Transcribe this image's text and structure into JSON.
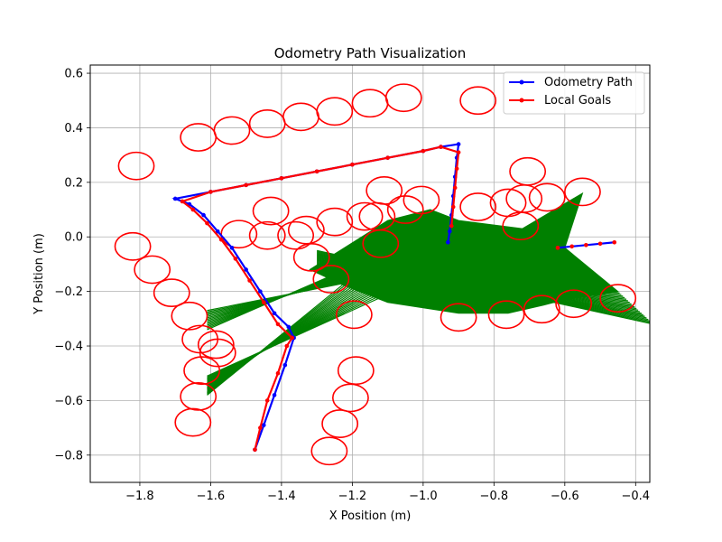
{
  "chart_data": {
    "type": "line",
    "title": "Odometry Path Visualization",
    "xlabel": "X Position (m)",
    "ylabel": "Y Position (m)",
    "xlim": [
      -1.94,
      -0.36
    ],
    "ylim": [
      -0.9,
      0.63
    ],
    "xticks": [
      -1.8,
      -1.6,
      -1.4,
      -1.2,
      -1.0,
      -0.8,
      -0.6,
      -0.4
    ],
    "yticks": [
      -0.8,
      -0.6,
      -0.4,
      -0.2,
      0.0,
      0.2,
      0.4,
      0.6
    ],
    "xtick_labels": [
      "−1.8",
      "−1.6",
      "−1.4",
      "−1.2",
      "−1.0",
      "−0.8",
      "−0.6",
      "−0.4"
    ],
    "ytick_labels": [
      "−0.8",
      "−0.6",
      "−0.4",
      "−0.2",
      "0.0",
      "0.2",
      "0.4",
      "0.6"
    ],
    "grid": true,
    "legend_position": "top-right",
    "colors": {
      "odometry": "#0000ff",
      "goals": "#ff0000",
      "connections": "#008000"
    },
    "series": [
      {
        "name": "Odometry Path",
        "x": [
          -1.475,
          -1.45,
          -1.42,
          -1.39,
          -1.365,
          -1.38,
          -1.42,
          -1.46,
          -1.5,
          -1.54,
          -1.58,
          -1.62,
          -1.66,
          -1.7,
          -1.6,
          -1.5,
          -1.4,
          -1.3,
          -1.2,
          -1.1,
          -1.0,
          -0.95,
          -0.9,
          -0.905,
          -0.91,
          -0.915,
          -0.92,
          -0.925,
          -0.93
        ],
        "y": [
          -0.78,
          -0.69,
          -0.58,
          -0.47,
          -0.37,
          -0.33,
          -0.28,
          -0.2,
          -0.12,
          -0.04,
          0.02,
          0.08,
          0.12,
          0.14,
          0.165,
          0.19,
          0.215,
          0.24,
          0.265,
          0.29,
          0.315,
          0.33,
          0.34,
          0.29,
          0.22,
          0.15,
          0.08,
          0.02,
          -0.02
        ]
      },
      {
        "name": "Local Goals",
        "x": [
          -1.475,
          -1.46,
          -1.44,
          -1.41,
          -1.385,
          -1.37,
          -1.41,
          -1.45,
          -1.49,
          -1.53,
          -1.57,
          -1.61,
          -1.65,
          -1.68,
          -1.6,
          -1.5,
          -1.4,
          -1.3,
          -1.2,
          -1.1,
          -1.0,
          -0.95,
          -0.9,
          -0.905,
          -0.91,
          -0.915,
          -0.92
        ],
        "y": [
          -0.78,
          -0.7,
          -0.6,
          -0.5,
          -0.4,
          -0.37,
          -0.32,
          -0.24,
          -0.16,
          -0.08,
          -0.01,
          0.05,
          0.1,
          0.13,
          0.165,
          0.19,
          0.215,
          0.24,
          0.265,
          0.29,
          0.315,
          0.33,
          0.31,
          0.25,
          0.18,
          0.11,
          0.04
        ]
      }
    ],
    "goal_path_tail": {
      "x": [
        -0.62,
        -0.58,
        -0.54,
        -0.5,
        -0.46
      ],
      "y": [
        -0.04,
        -0.035,
        -0.03,
        -0.025,
        -0.02
      ]
    },
    "obstacles": {
      "radius_x": 0.05,
      "radius_y": 0.05,
      "centers": [
        [
          -1.81,
          0.26
        ],
        [
          -1.82,
          -0.035
        ],
        [
          -1.765,
          -0.12
        ],
        [
          -1.71,
          -0.205
        ],
        [
          -1.66,
          -0.29
        ],
        [
          -1.63,
          -0.375
        ],
        [
          -1.585,
          -0.395
        ],
        [
          -1.58,
          -0.425
        ],
        [
          -1.625,
          -0.49
        ],
        [
          -1.635,
          -0.585
        ],
        [
          -1.65,
          -0.68
        ],
        [
          -1.635,
          0.365
        ],
        [
          -1.54,
          0.39
        ],
        [
          -1.44,
          0.415
        ],
        [
          -1.345,
          0.44
        ],
        [
          -1.25,
          0.46
        ],
        [
          -1.15,
          0.49
        ],
        [
          -1.055,
          0.51
        ],
        [
          -0.845,
          0.5
        ],
        [
          -1.52,
          0.01
        ],
        [
          -1.44,
          0.005
        ],
        [
          -1.43,
          0.095
        ],
        [
          -1.36,
          0.005
        ],
        [
          -1.33,
          0.025
        ],
        [
          -1.315,
          -0.075
        ],
        [
          -1.26,
          -0.155
        ],
        [
          -1.25,
          0.055
        ],
        [
          -1.165,
          0.075
        ],
        [
          -1.13,
          0.075
        ],
        [
          -1.12,
          -0.025
        ],
        [
          -1.11,
          0.17
        ],
        [
          -1.05,
          0.1
        ],
        [
          -1.005,
          0.135
        ],
        [
          -0.845,
          0.11
        ],
        [
          -0.76,
          0.125
        ],
        [
          -0.715,
          0.14
        ],
        [
          -0.705,
          0.24
        ],
        [
          -0.65,
          0.145
        ],
        [
          -0.55,
          0.165
        ],
        [
          -0.725,
          0.04
        ],
        [
          -1.195,
          -0.285
        ],
        [
          -0.9,
          -0.295
        ],
        [
          -0.765,
          -0.285
        ],
        [
          -0.665,
          -0.265
        ],
        [
          -0.575,
          -0.245
        ],
        [
          -0.45,
          -0.225
        ],
        [
          -1.19,
          -0.49
        ],
        [
          -1.205,
          -0.59
        ],
        [
          -1.235,
          -0.685
        ],
        [
          -1.265,
          -0.785
        ]
      ]
    },
    "connection_fans": [
      {
        "from": [
          -1.61,
          -0.34
        ],
        "to": [
          -0.9,
          0.06
        ],
        "count": 14
      },
      {
        "from": [
          -1.61,
          -0.58
        ],
        "to": [
          -1.08,
          -0.02
        ],
        "count": 18
      },
      {
        "from": [
          -1.3,
          -0.12
        ],
        "to": [
          -0.45,
          -0.2
        ],
        "count": 22
      }
    ],
    "green_region": [
      [
        -1.32,
        -0.12
      ],
      [
        -1.1,
        0.06
      ],
      [
        -0.98,
        0.1
      ],
      [
        -0.9,
        0.06
      ],
      [
        -0.72,
        0.03
      ],
      [
        -0.55,
        0.16
      ],
      [
        -0.6,
        -0.04
      ],
      [
        -0.45,
        -0.2
      ],
      [
        -0.6,
        -0.23
      ],
      [
        -0.66,
        -0.25
      ],
      [
        -0.76,
        -0.28
      ],
      [
        -0.9,
        -0.28
      ],
      [
        -1.1,
        -0.24
      ],
      [
        -1.22,
        -0.18
      ]
    ]
  }
}
